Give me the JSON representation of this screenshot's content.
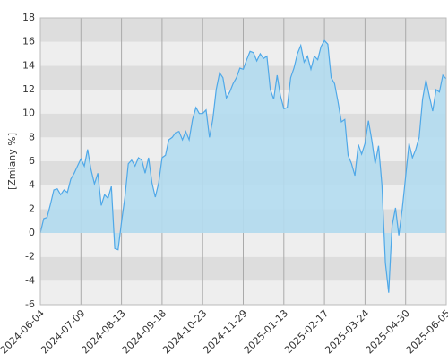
{
  "chart_data": {
    "type": "area",
    "y_label": "[Zmiany %]",
    "categories": [
      "2024-06-04",
      null,
      null,
      null,
      null,
      null,
      null,
      null,
      null,
      null,
      null,
      null,
      "2024-07-09",
      null,
      null,
      null,
      null,
      null,
      null,
      null,
      null,
      null,
      null,
      null,
      "2024-08-13",
      null,
      null,
      null,
      null,
      null,
      null,
      null,
      null,
      null,
      null,
      null,
      "2024-09-18",
      null,
      null,
      null,
      null,
      null,
      null,
      null,
      null,
      null,
      null,
      null,
      "2024-10-23",
      null,
      null,
      null,
      null,
      null,
      null,
      null,
      null,
      null,
      null,
      null,
      "2024-11-29",
      null,
      null,
      null,
      null,
      null,
      null,
      null,
      null,
      null,
      null,
      null,
      "2025-01-13",
      null,
      null,
      null,
      null,
      null,
      null,
      null,
      null,
      null,
      null,
      null,
      "2025-02-17",
      null,
      null,
      null,
      null,
      null,
      null,
      null,
      null,
      null,
      null,
      null,
      "2025-03-24",
      null,
      null,
      null,
      null,
      null,
      null,
      null,
      null,
      null,
      null,
      null,
      "2025-04-30",
      null,
      null,
      null,
      null,
      null,
      null,
      null,
      null,
      null,
      null,
      null,
      "2025-06-05"
    ],
    "values": [
      0,
      1.2,
      1.3,
      2.4,
      3.6,
      3.7,
      3.2,
      3.6,
      3.4,
      4.5,
      5.0,
      5.6,
      6.2,
      5.6,
      7.0,
      5.3,
      4.1,
      5.0,
      2.3,
      3.2,
      2.9,
      3.9,
      -1.3,
      -1.4,
      0.9,
      3.0,
      5.8,
      6.1,
      5.6,
      6.3,
      6.1,
      5.0,
      6.3,
      4.2,
      3.0,
      4.2,
      6.3,
      6.5,
      7.8,
      8.0,
      8.4,
      8.5,
      7.8,
      8.5,
      7.8,
      9.5,
      10.5,
      10.0,
      10.0,
      10.3,
      8.0,
      9.5,
      12.0,
      13.4,
      13.0,
      11.3,
      11.8,
      12.5,
      13.0,
      13.8,
      13.7,
      14.5,
      15.2,
      15.1,
      14.4,
      15.0,
      14.6,
      14.8,
      12.0,
      11.2,
      13.2,
      11.5,
      10.4,
      10.5,
      13.0,
      13.8,
      15.0,
      15.7,
      14.3,
      14.8,
      13.7,
      14.8,
      14.5,
      15.6,
      16.1,
      15.8,
      13.0,
      12.5,
      11.0,
      9.3,
      9.5,
      6.5,
      5.8,
      4.8,
      7.4,
      6.6,
      7.5,
      9.4,
      7.8,
      5.8,
      7.3,
      4.0,
      -2.5,
      -5.0,
      0.6,
      2.1,
      -0.2,
      2.0,
      4.7,
      7.5,
      6.3,
      7.0,
      8.0,
      11.2,
      12.8,
      11.5,
      10.2,
      12.0,
      11.8,
      13.2,
      12.9
    ],
    "color": "#4fa8e8",
    "fill_color": "#b3dcf0",
    "ylim": [
      -6,
      18
    ],
    "yticks": [
      -6,
      -4,
      -2,
      0,
      2,
      4,
      6,
      8,
      10,
      12,
      14,
      16,
      18
    ],
    "band_colors": [
      "#dddddd",
      "#eeeeee"
    ]
  }
}
